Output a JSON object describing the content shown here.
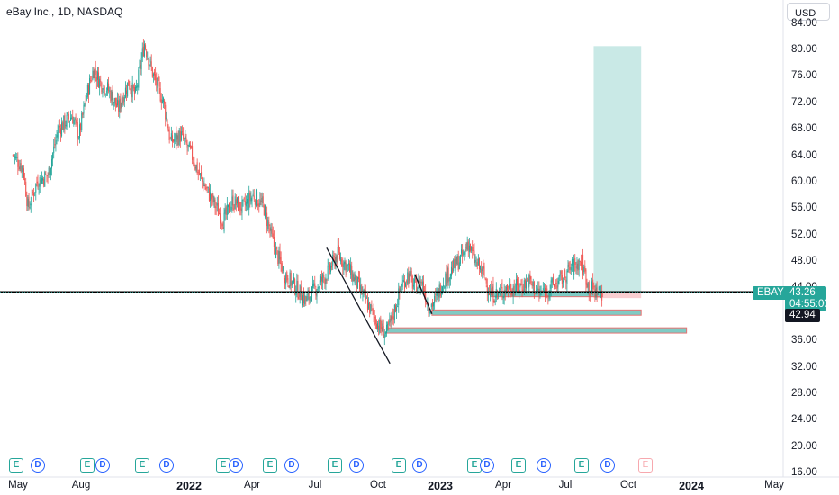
{
  "header": {
    "title": "eBay Inc., 1D, NASDAQ",
    "currency": "USD"
  },
  "price_axis": [
    "84.00",
    "80.00",
    "76.00",
    "72.00",
    "68.00",
    "64.00",
    "60.00",
    "56.00",
    "52.00",
    "48.00",
    "44.00",
    "36.00",
    "32.00",
    "28.00",
    "24.00",
    "20.00",
    "16.00"
  ],
  "time_axis": [
    {
      "label": "May",
      "bold": false
    },
    {
      "label": "Aug",
      "bold": false
    },
    {
      "label": "2022",
      "bold": true
    },
    {
      "label": "Apr",
      "bold": false
    },
    {
      "label": "Jul",
      "bold": false
    },
    {
      "label": "Oct",
      "bold": false
    },
    {
      "label": "2023",
      "bold": true
    },
    {
      "label": "Apr",
      "bold": false
    },
    {
      "label": "Jul",
      "bold": false
    },
    {
      "label": "Oct",
      "bold": false
    },
    {
      "label": "2024",
      "bold": true
    },
    {
      "label": "May",
      "bold": false
    }
  ],
  "price_tags": {
    "symbol": "EBAY",
    "last_price": "43.26",
    "countdown": "04:55:00",
    "alt_price": "42.94"
  },
  "events": [
    {
      "type": "earn",
      "label": "E"
    },
    {
      "type": "div",
      "label": "D"
    },
    {
      "type": "earn",
      "label": "E"
    },
    {
      "type": "div",
      "label": "D"
    },
    {
      "type": "earn",
      "label": "E"
    },
    {
      "type": "div",
      "label": "D"
    },
    {
      "type": "earn",
      "label": "E"
    },
    {
      "type": "div",
      "label": "D"
    },
    {
      "type": "earn",
      "label": "E"
    },
    {
      "type": "div",
      "label": "D"
    },
    {
      "type": "earn",
      "label": "E"
    },
    {
      "type": "div",
      "label": "D"
    },
    {
      "type": "earn",
      "label": "E"
    },
    {
      "type": "div",
      "label": "D"
    },
    {
      "type": "earn",
      "label": "E"
    },
    {
      "type": "div",
      "label": "D"
    },
    {
      "type": "earn",
      "label": "E"
    },
    {
      "type": "div",
      "label": "D"
    },
    {
      "type": "earn",
      "label": "E"
    },
    {
      "type": "div",
      "label": "D"
    },
    {
      "type": "future",
      "label": "E"
    }
  ],
  "colors": {
    "up": "#26a69a",
    "down": "#ef5350",
    "target_zone": "#b2dfdb",
    "stop_zone": "#f8c9cc",
    "support_zone": "#80cbc4",
    "support_border": "#e57373"
  },
  "chart_data": {
    "type": "candlestick",
    "series_name": "eBay Inc.",
    "x_range": [
      "2021-05",
      "2024-05"
    ],
    "ylim": [
      16,
      84
    ],
    "close_path": [
      {
        "date": "2021-04-20",
        "price": 64
      },
      {
        "date": "2021-05-05",
        "price": 62
      },
      {
        "date": "2021-05-12",
        "price": 56
      },
      {
        "date": "2021-05-25",
        "price": 60
      },
      {
        "date": "2021-06-10",
        "price": 61
      },
      {
        "date": "2021-06-25",
        "price": 68
      },
      {
        "date": "2021-07-15",
        "price": 70
      },
      {
        "date": "2021-07-25",
        "price": 67
      },
      {
        "date": "2021-08-05",
        "price": 73
      },
      {
        "date": "2021-08-15",
        "price": 77
      },
      {
        "date": "2021-08-25",
        "price": 75
      },
      {
        "date": "2021-09-05",
        "price": 74
      },
      {
        "date": "2021-09-20",
        "price": 71
      },
      {
        "date": "2021-10-05",
        "price": 75
      },
      {
        "date": "2021-10-15",
        "price": 73
      },
      {
        "date": "2021-10-28",
        "price": 81
      },
      {
        "date": "2021-11-10",
        "price": 76
      },
      {
        "date": "2021-11-25",
        "price": 72
      },
      {
        "date": "2021-12-05",
        "price": 66
      },
      {
        "date": "2021-12-20",
        "price": 67
      },
      {
        "date": "2022-01-05",
        "price": 64
      },
      {
        "date": "2022-01-20",
        "price": 60
      },
      {
        "date": "2022-02-05",
        "price": 57
      },
      {
        "date": "2022-02-20",
        "price": 54
      },
      {
        "date": "2022-03-05",
        "price": 57
      },
      {
        "date": "2022-03-20",
        "price": 56
      },
      {
        "date": "2022-04-05",
        "price": 58
      },
      {
        "date": "2022-04-20",
        "price": 56
      },
      {
        "date": "2022-05-05",
        "price": 50
      },
      {
        "date": "2022-05-20",
        "price": 46
      },
      {
        "date": "2022-06-05",
        "price": 44
      },
      {
        "date": "2022-06-20",
        "price": 42
      },
      {
        "date": "2022-07-05",
        "price": 44
      },
      {
        "date": "2022-07-20",
        "price": 46
      },
      {
        "date": "2022-08-05",
        "price": 49
      },
      {
        "date": "2022-08-20",
        "price": 47
      },
      {
        "date": "2022-09-05",
        "price": 44
      },
      {
        "date": "2022-09-20",
        "price": 41
      },
      {
        "date": "2022-10-05",
        "price": 38
      },
      {
        "date": "2022-10-15",
        "price": 37
      },
      {
        "date": "2022-10-25",
        "price": 40
      },
      {
        "date": "2022-11-05",
        "price": 44
      },
      {
        "date": "2022-11-15",
        "price": 46
      },
      {
        "date": "2022-11-25",
        "price": 44
      },
      {
        "date": "2022-12-05",
        "price": 45
      },
      {
        "date": "2022-12-15",
        "price": 41
      },
      {
        "date": "2022-12-25",
        "price": 42
      },
      {
        "date": "2023-01-05",
        "price": 45
      },
      {
        "date": "2023-01-20",
        "price": 47
      },
      {
        "date": "2023-02-05",
        "price": 49
      },
      {
        "date": "2023-02-10",
        "price": 51
      },
      {
        "date": "2023-02-20",
        "price": 48
      },
      {
        "date": "2023-03-05",
        "price": 46
      },
      {
        "date": "2023-03-15",
        "price": 43
      },
      {
        "date": "2023-03-25",
        "price": 43
      },
      {
        "date": "2023-04-10",
        "price": 44
      },
      {
        "date": "2023-04-25",
        "price": 44
      },
      {
        "date": "2023-05-10",
        "price": 45
      },
      {
        "date": "2023-05-25",
        "price": 43
      },
      {
        "date": "2023-06-10",
        "price": 44
      },
      {
        "date": "2023-06-25",
        "price": 45
      },
      {
        "date": "2023-07-10",
        "price": 47
      },
      {
        "date": "2023-07-25",
        "price": 48
      },
      {
        "date": "2023-08-05",
        "price": 44
      },
      {
        "date": "2023-08-15",
        "price": 43.5
      },
      {
        "date": "2023-08-25",
        "price": 43.26
      }
    ],
    "horizontal_line": 43.26,
    "trend_lines": [
      {
        "from": {
          "date": "2022-07-20",
          "price": 50
        },
        "to": {
          "date": "2022-10-20",
          "price": 32.5
        }
      },
      {
        "from": {
          "date": "2022-11-25",
          "price": 46
        },
        "to": {
          "date": "2022-12-20",
          "price": 40
        }
      }
    ],
    "zones": [
      {
        "name": "target",
        "from": "2023-08-12",
        "to": "2023-10-20",
        "top": 80.5,
        "bottom": 43.26
      },
      {
        "name": "stop",
        "from": "2023-08-12",
        "to": "2023-10-20",
        "top": 43.26,
        "bottom": 42.4
      },
      {
        "name": "support-1",
        "from": "2023-03-15",
        "to": "2023-08-25",
        "top": 43.4,
        "bottom": 42.6
      },
      {
        "name": "support-2",
        "from": "2022-12-20",
        "to": "2023-10-20",
        "top": 40.6,
        "bottom": 39.8
      },
      {
        "name": "support-3",
        "from": "2022-10-15",
        "to": "2023-12-25",
        "top": 37.9,
        "bottom": 37.1
      }
    ],
    "grid": false
  }
}
